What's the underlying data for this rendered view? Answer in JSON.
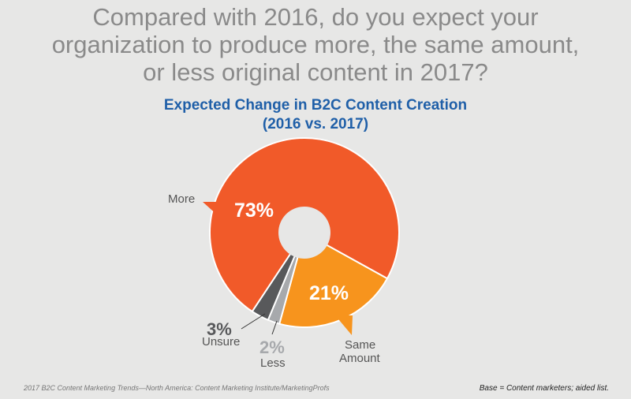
{
  "question": [
    "Compared with 2016, do you expect your",
    "organization to produce more, the same amount,",
    "or less original content in 2017?"
  ],
  "footer": {
    "source": "2017 B2C Content Marketing Trends—North America: Content Marketing Institute/MarketingProfs",
    "base": "Base = Content marketers; aided list."
  },
  "chart_data": {
    "type": "pie",
    "donut": true,
    "title": "Expected Change in B2C Content Creation",
    "subtitle": "(2016 vs. 2017)",
    "slices": [
      {
        "label": "Same Amount",
        "value": 21,
        "display": "21%",
        "color": "#f7941d"
      },
      {
        "label": "Less",
        "value": 2,
        "display": "2%",
        "color": "#a7a9ac"
      },
      {
        "label": "Unsure",
        "value": 3,
        "display": "3%",
        "color": "#58595b"
      },
      {
        "label": "More",
        "value": 73,
        "display": "73%",
        "color": "#f15a29"
      }
    ]
  }
}
